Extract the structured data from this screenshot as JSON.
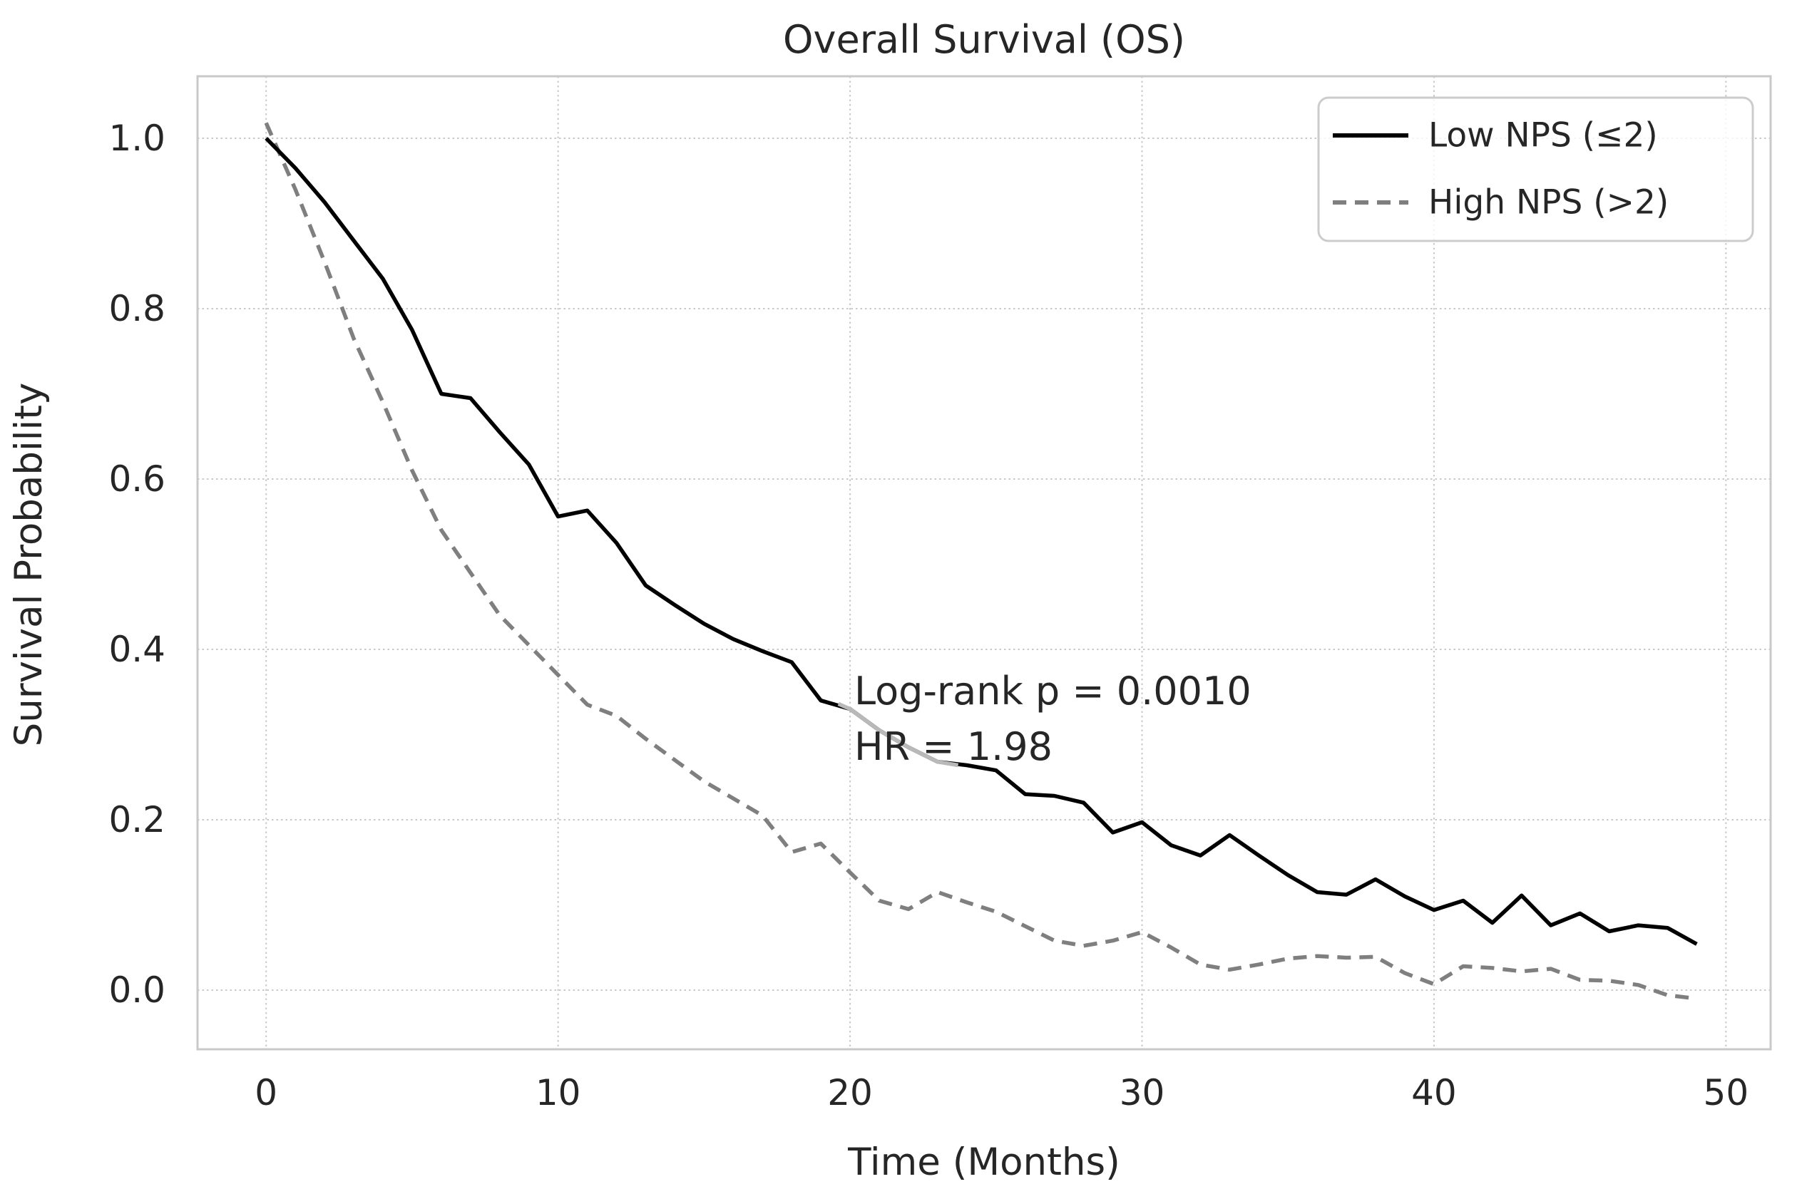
{
  "chart_data": {
    "type": "line",
    "title": "Overall Survival (OS)",
    "xlabel": "Time (Months)",
    "ylabel": "Survival Probability",
    "xlim": [
      -2.35,
      51.53
    ],
    "ylim": [
      -0.0695,
      1.0728
    ],
    "xticks": {
      "values": [
        0,
        10,
        20,
        30,
        40,
        50
      ],
      "labels": [
        "0",
        "10",
        "20",
        "30",
        "40",
        "50"
      ]
    },
    "yticks": {
      "values": [
        0.0,
        0.2,
        0.4,
        0.6,
        0.8,
        1.0
      ],
      "labels": [
        "0.0",
        "0.2",
        "0.4",
        "0.6",
        "0.8",
        "1.0"
      ]
    },
    "grid": true,
    "legend_position": "upper right",
    "annotation": {
      "line1": "Log-rank p = 0.0010",
      "line2": "HR = 1.98"
    },
    "x": [
      0,
      1,
      2,
      3,
      4,
      5,
      6,
      7,
      8,
      9,
      10,
      11,
      12,
      13,
      14,
      15,
      16,
      17,
      18,
      19,
      20,
      21,
      22,
      23,
      24,
      25,
      26,
      27,
      28,
      29,
      30,
      31,
      32,
      33,
      34,
      35,
      36,
      37,
      38,
      39,
      40,
      41,
      42,
      43,
      44,
      45,
      46,
      47,
      48,
      49
    ],
    "series": [
      {
        "name": "Low NPS (≤2)",
        "color": "#000000",
        "style": "solid",
        "values": [
          1.0,
          0.965,
          0.925,
          0.88,
          0.835,
          0.775,
          0.7,
          0.695,
          0.655,
          0.617,
          0.556,
          0.563,
          0.525,
          0.475,
          0.452,
          0.43,
          0.412,
          0.398,
          0.385,
          0.34,
          0.33,
          0.305,
          0.285,
          0.268,
          0.264,
          0.258,
          0.23,
          0.228,
          0.22,
          0.185,
          0.197,
          0.17,
          0.158,
          0.182,
          0.158,
          0.135,
          0.115,
          0.112,
          0.13,
          0.11,
          0.094,
          0.105,
          0.079,
          0.111,
          0.076,
          0.09,
          0.069,
          0.076,
          0.073,
          0.054
        ]
      },
      {
        "name": "High NPS (>2)",
        "color": "#7f7f7f",
        "style": "dashed",
        "values": [
          1.018,
          0.94,
          0.855,
          0.765,
          0.69,
          0.61,
          0.54,
          0.49,
          0.44,
          0.405,
          0.37,
          0.335,
          0.322,
          0.295,
          0.27,
          0.245,
          0.225,
          0.205,
          0.162,
          0.172,
          0.138,
          0.105,
          0.095,
          0.115,
          0.103,
          0.092,
          0.075,
          0.058,
          0.052,
          0.058,
          0.068,
          0.05,
          0.03,
          0.024,
          0.03,
          0.037,
          0.04,
          0.038,
          0.039,
          0.02,
          0.007,
          0.028,
          0.026,
          0.022,
          0.025,
          0.012,
          0.011,
          0.006,
          -0.006,
          -0.01
        ]
      }
    ],
    "faded_segment": {
      "color": "#b9b9b9",
      "points": [
        [
          19.6,
          0.336
        ],
        [
          20,
          0.33
        ],
        [
          21,
          0.305
        ],
        [
          22,
          0.285
        ],
        [
          23,
          0.268
        ],
        [
          23.7,
          0.264
        ]
      ]
    }
  },
  "colors": {
    "grid": "#c9c9c9",
    "spine": "#c9c9c9",
    "legend_border": "#cccccc",
    "text": "#262626",
    "background": "#ffffff"
  }
}
